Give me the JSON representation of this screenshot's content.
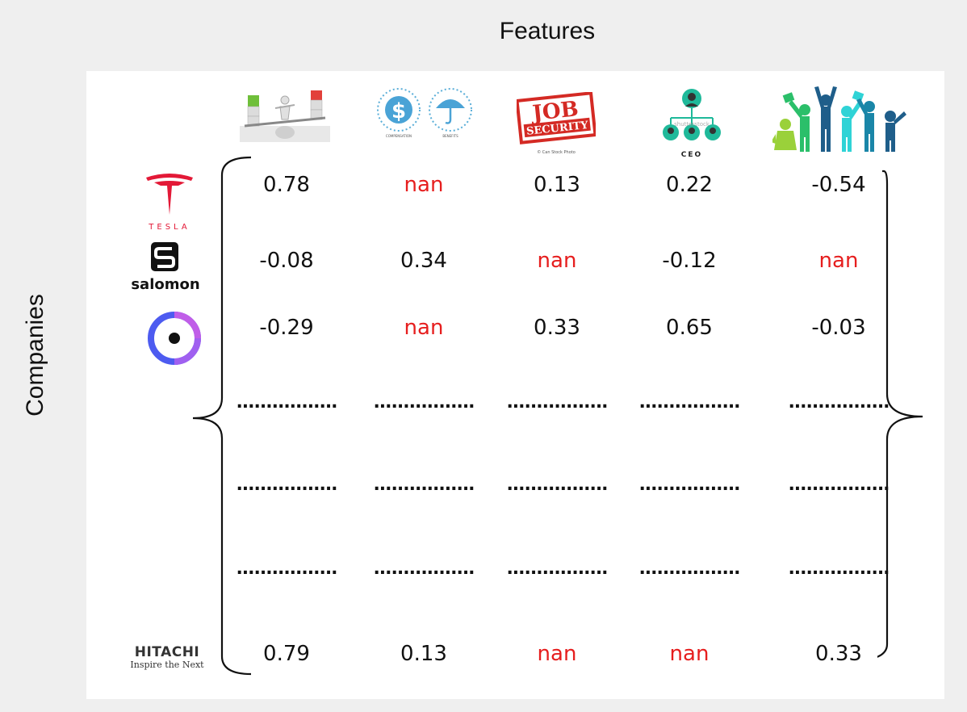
{
  "titles": {
    "features": "Features",
    "companies": "Companies"
  },
  "features": [
    {
      "icon": "work-life-balance-icon",
      "caption": ""
    },
    {
      "icon": "compensation-benefits-icon",
      "caption": "",
      "labels": [
        "COMPENSATION",
        "BENEFITS"
      ]
    },
    {
      "icon": "job-security-icon",
      "caption": "© Can Stock Photo",
      "labels": [
        "JOB",
        "SECURITY"
      ]
    },
    {
      "icon": "ceo-org-chart-icon",
      "caption": "CEO",
      "labels": [
        "shutterstock"
      ]
    },
    {
      "icon": "career-celebration-icon",
      "caption": ""
    }
  ],
  "companies": [
    {
      "name": "TESLA",
      "icon": "tesla-logo"
    },
    {
      "name": "salomon",
      "icon": "salomon-logo"
    },
    {
      "name": "",
      "icon": "ring-logo"
    },
    {
      "name": "HITACHI",
      "tagline": "Inspire the Next",
      "icon": "hitachi-logo"
    }
  ],
  "matrix": {
    "rows": [
      [
        "0.78",
        "nan",
        "0.13",
        "0.22",
        "-0.54"
      ],
      [
        "-0.08",
        "0.34",
        "nan",
        "-0.12",
        "nan"
      ],
      [
        "-0.29",
        "nan",
        "0.33",
        "0.65",
        "-0.03"
      ],
      [
        "0.79",
        "0.13",
        "nan",
        "nan",
        "0.33"
      ]
    ],
    "ellipsis": "................."
  },
  "colors": {
    "nan": "#e61e1e",
    "text": "#111111",
    "panel": "#ffffff",
    "background": "#efefef"
  }
}
